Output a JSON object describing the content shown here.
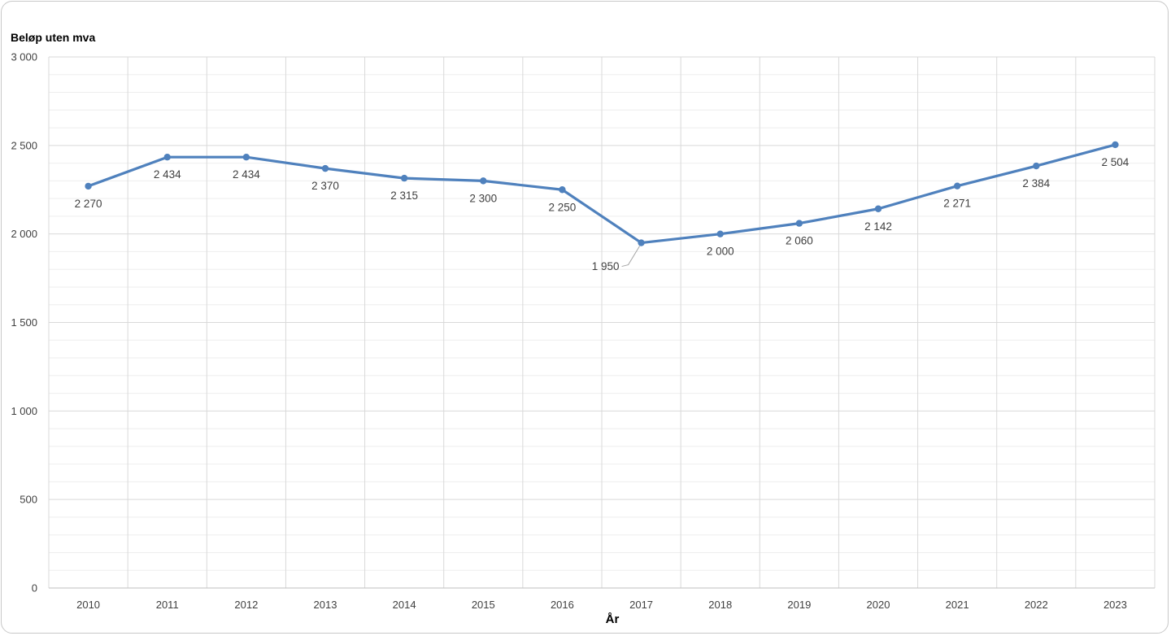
{
  "chart_data": {
    "type": "line",
    "ylabel": "Beløp uten mva",
    "xlabel": "År",
    "ylim": [
      0,
      3000
    ],
    "yticks": [
      0,
      500,
      1000,
      1500,
      2000,
      2500,
      3000
    ],
    "ytick_labels": [
      "0",
      "500",
      "1 000",
      "1 500",
      "2 000",
      "2 500",
      "3 000"
    ],
    "categories": [
      "2010",
      "2011",
      "2012",
      "2013",
      "2014",
      "2015",
      "2016",
      "2017",
      "2018",
      "2019",
      "2020",
      "2021",
      "2022",
      "2023"
    ],
    "series": [
      {
        "values": [
          2270,
          2434,
          2434,
          2370,
          2315,
          2300,
          2250,
          1950,
          2000,
          2060,
          2142,
          2271,
          2384,
          2504
        ],
        "data_labels": [
          "2 270",
          "2 434",
          "2 434",
          "2 370",
          "2 315",
          "2 300",
          "2 250",
          "1 950",
          "2 000",
          "2 060",
          "2 142",
          "2 271",
          "2 384",
          "2 504"
        ],
        "color": "#4f81bd"
      }
    ],
    "grid": true,
    "minor_grid": true,
    "legend": "none",
    "colors": {
      "line": "#4f81bd",
      "major_grid": "#d9d9d9",
      "minor_grid": "#eeeeee",
      "text": "#404040"
    }
  }
}
